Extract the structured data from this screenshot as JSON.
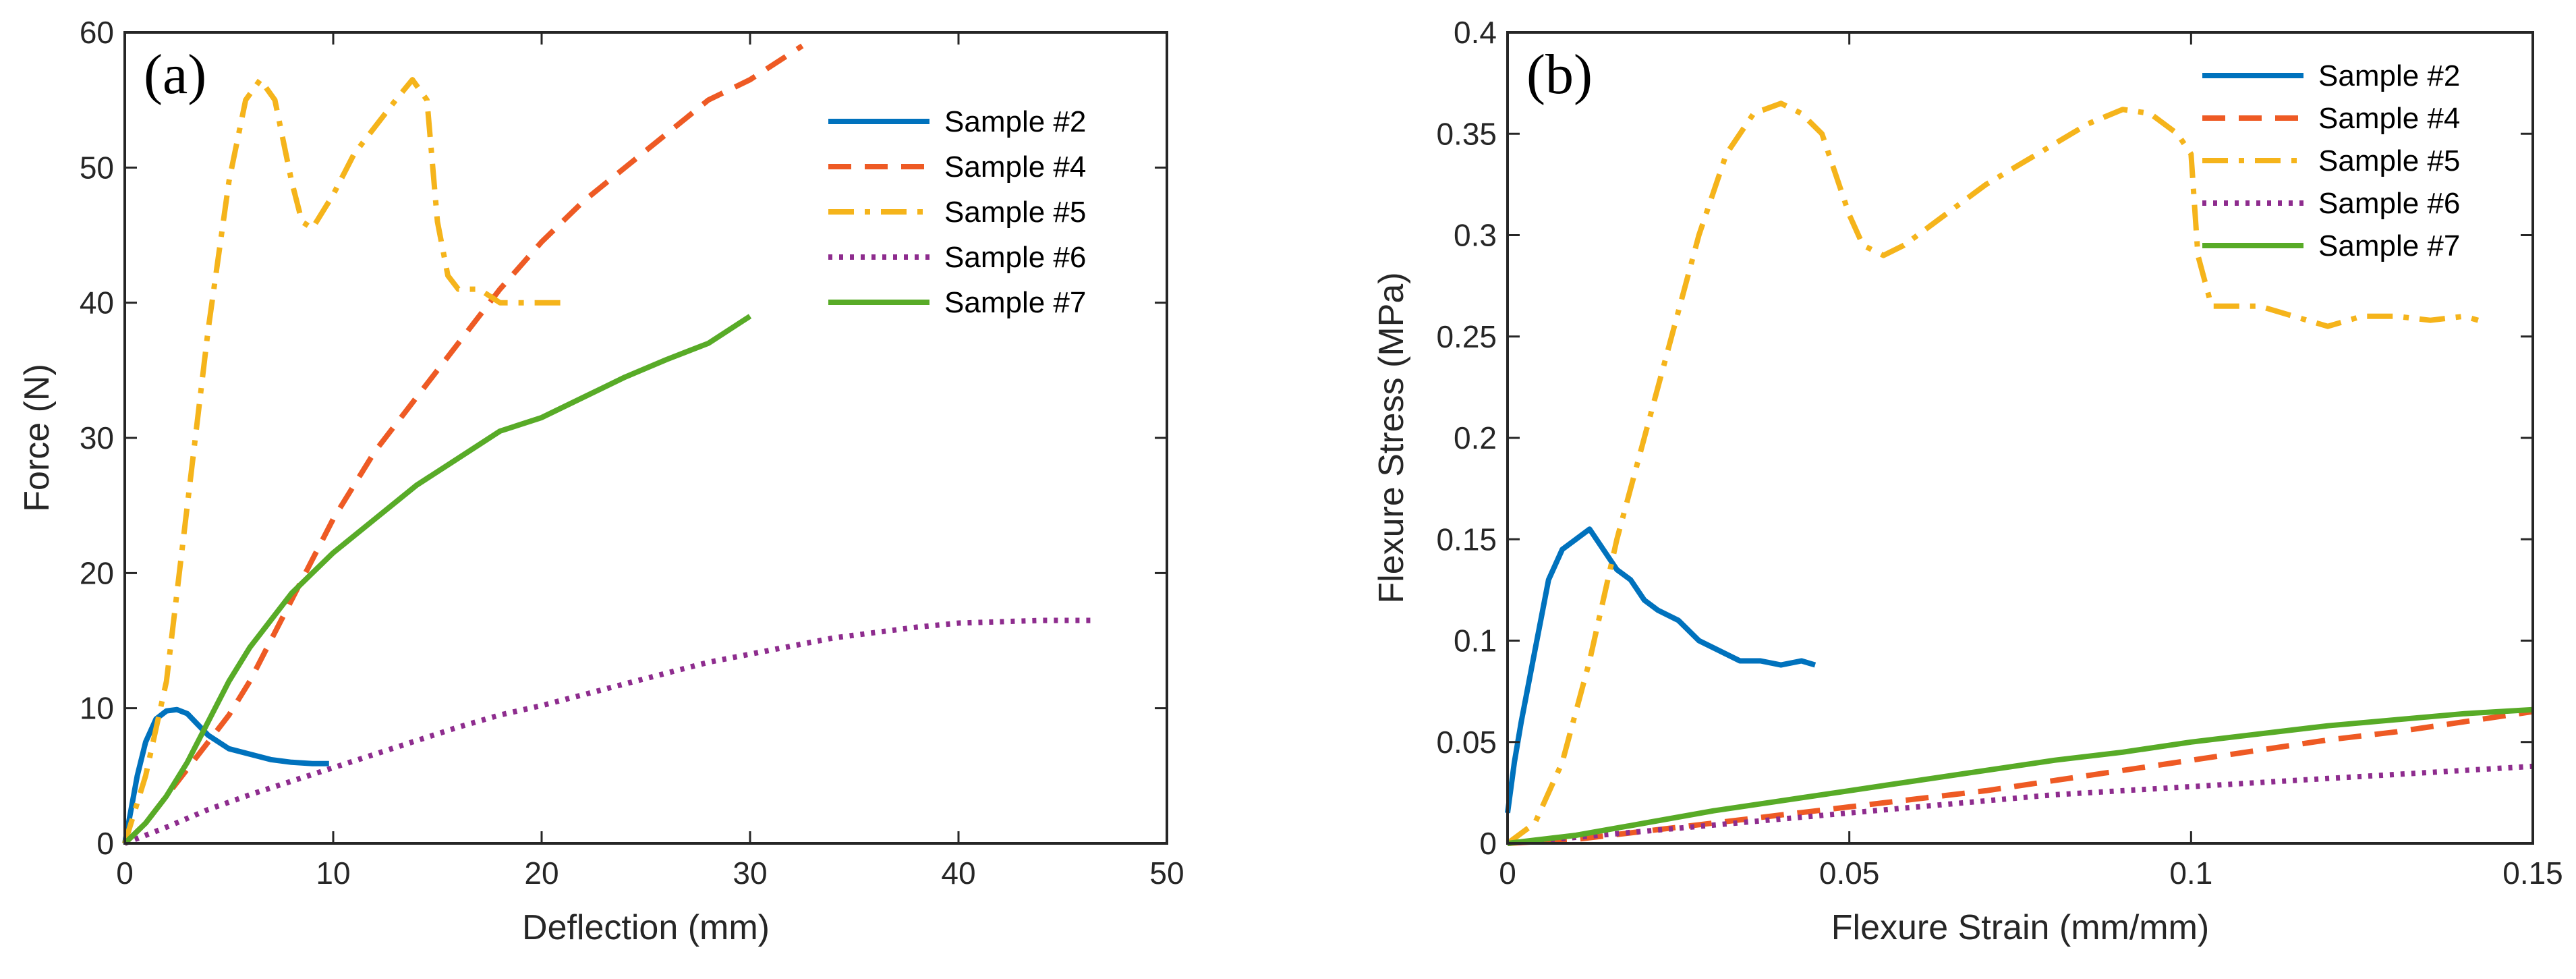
{
  "chart_data": [
    {
      "type": "line",
      "panel_label": "(a)",
      "xlabel": "Deflection (mm)",
      "ylabel": "Force (N)",
      "xlim": [
        0,
        50
      ],
      "ylim": [
        0,
        60
      ],
      "xticks": [
        0,
        10,
        20,
        30,
        40,
        50
      ],
      "yticks": [
        0,
        10,
        20,
        30,
        40,
        50,
        60
      ],
      "grid": false,
      "legend_position": "top-right",
      "series": [
        {
          "name": "Sample #2",
          "color": "#0072BD",
          "dash": "solid",
          "x": [
            0,
            0.3,
            0.6,
            1.0,
            1.5,
            2.0,
            2.5,
            3.0,
            3.5,
            4.0,
            5.0,
            6.0,
            7.0,
            8.0,
            9.0,
            9.8
          ],
          "y": [
            0,
            2.5,
            5.0,
            7.5,
            9.2,
            9.8,
            9.9,
            9.6,
            8.8,
            8.0,
            7.0,
            6.6,
            6.2,
            6.0,
            5.9,
            5.9
          ]
        },
        {
          "name": "Sample #4",
          "color": "#EE5A24",
          "dash": "dashed",
          "x": [
            0,
            1,
            2,
            3,
            4,
            5,
            6,
            7,
            8,
            9,
            10,
            12,
            14,
            16,
            18,
            20,
            22,
            24,
            26,
            28,
            30,
            32.5
          ],
          "y": [
            0,
            1.5,
            3.5,
            5.5,
            7.5,
            9.5,
            12,
            15,
            18,
            21,
            24,
            29,
            33,
            37,
            41,
            44.5,
            47.5,
            50,
            52.5,
            55,
            56.5,
            59
          ]
        },
        {
          "name": "Sample #5",
          "color": "#F5B41B",
          "dash": "dashdot",
          "x": [
            0,
            1,
            2,
            3,
            4,
            5,
            5.8,
            6.5,
            7.2,
            8.0,
            8.5,
            9.0,
            10,
            11,
            12,
            13,
            13.8,
            14.5,
            15.0,
            15.5,
            16,
            17,
            18,
            19,
            20,
            21
          ],
          "y": [
            0,
            5,
            12,
            25,
            38,
            49,
            55,
            56.5,
            55,
            49,
            46,
            45.5,
            48,
            51,
            53,
            55,
            56.5,
            55,
            46,
            42,
            41,
            41,
            40,
            40,
            40,
            40
          ]
        },
        {
          "name": "Sample #6",
          "color": "#8E2C8E",
          "dash": "dotted",
          "x": [
            0,
            2,
            4,
            6,
            8,
            10,
            12,
            14,
            16,
            18,
            20,
            22,
            24,
            26,
            28,
            30,
            32,
            34,
            36,
            38,
            40,
            42,
            44,
            46.5
          ],
          "y": [
            0,
            1.2,
            2.5,
            3.6,
            4.6,
            5.6,
            6.6,
            7.6,
            8.6,
            9.5,
            10.2,
            11.0,
            11.8,
            12.6,
            13.4,
            14.0,
            14.6,
            15.2,
            15.6,
            16.0,
            16.3,
            16.4,
            16.5,
            16.5
          ]
        },
        {
          "name": "Sample #7",
          "color": "#58AB27",
          "dash": "solid",
          "x": [
            0,
            1,
            2,
            3,
            4,
            5,
            6,
            7,
            8,
            9,
            10,
            12,
            14,
            16,
            18,
            20,
            22,
            24,
            26,
            28,
            29.5,
            30
          ],
          "y": [
            0,
            1.5,
            3.5,
            6,
            9,
            12,
            14.5,
            16.5,
            18.5,
            20,
            21.5,
            24,
            26.5,
            28.5,
            30.5,
            31.5,
            33,
            34.5,
            35.8,
            37,
            38.5,
            39
          ]
        }
      ]
    },
    {
      "type": "line",
      "panel_label": "(b)",
      "xlabel": "Flexure Strain (mm/mm)",
      "ylabel": "Flexure Stress (MPa)",
      "xlim": [
        0,
        0.15
      ],
      "ylim": [
        0,
        0.4
      ],
      "xticks": [
        0,
        0.05,
        0.1,
        0.15
      ],
      "yticks": [
        0,
        0.05,
        0.1,
        0.15,
        0.2,
        0.25,
        0.3,
        0.35,
        0.4
      ],
      "grid": false,
      "legend_position": "top-right",
      "series": [
        {
          "name": "Sample #2",
          "color": "#0072BD",
          "dash": "solid",
          "x": [
            0,
            0.001,
            0.002,
            0.004,
            0.006,
            0.008,
            0.01,
            0.012,
            0.014,
            0.016,
            0.018,
            0.02,
            0.022,
            0.025,
            0.028,
            0.031,
            0.034,
            0.037,
            0.04,
            0.043,
            0.045
          ],
          "y": [
            0.015,
            0.04,
            0.06,
            0.095,
            0.13,
            0.145,
            0.15,
            0.155,
            0.145,
            0.135,
            0.13,
            0.12,
            0.115,
            0.11,
            0.1,
            0.095,
            0.09,
            0.09,
            0.088,
            0.09,
            0.088
          ]
        },
        {
          "name": "Sample #4",
          "color": "#EE5A24",
          "dash": "dashed",
          "x": [
            0,
            0.01,
            0.02,
            0.03,
            0.04,
            0.05,
            0.06,
            0.07,
            0.08,
            0.09,
            0.1,
            0.11,
            0.12,
            0.13,
            0.14,
            0.15
          ],
          "y": [
            0,
            0.002,
            0.006,
            0.01,
            0.014,
            0.018,
            0.022,
            0.026,
            0.031,
            0.036,
            0.041,
            0.046,
            0.051,
            0.055,
            0.06,
            0.065
          ]
        },
        {
          "name": "Sample #5",
          "color": "#F5B41B",
          "dash": "dashdot",
          "x": [
            0,
            0.004,
            0.008,
            0.012,
            0.016,
            0.02,
            0.024,
            0.028,
            0.032,
            0.036,
            0.04,
            0.043,
            0.046,
            0.048,
            0.05,
            0.052,
            0.055,
            0.058,
            0.062,
            0.066,
            0.07,
            0.075,
            0.08,
            0.085,
            0.09,
            0.094,
            0.098,
            0.1,
            0.101,
            0.103,
            0.106,
            0.11,
            0.115,
            0.12,
            0.125,
            0.13,
            0.135,
            0.14,
            0.142
          ],
          "y": [
            0,
            0.01,
            0.04,
            0.09,
            0.15,
            0.2,
            0.25,
            0.3,
            0.34,
            0.36,
            0.365,
            0.36,
            0.35,
            0.33,
            0.31,
            0.295,
            0.29,
            0.295,
            0.305,
            0.315,
            0.325,
            0.335,
            0.345,
            0.355,
            0.362,
            0.36,
            0.35,
            0.34,
            0.29,
            0.265,
            0.265,
            0.265,
            0.26,
            0.255,
            0.26,
            0.26,
            0.258,
            0.26,
            0.258
          ]
        },
        {
          "name": "Sample #6",
          "color": "#8E2C8E",
          "dash": "dotted",
          "x": [
            0,
            0.01,
            0.02,
            0.03,
            0.04,
            0.05,
            0.06,
            0.07,
            0.08,
            0.09,
            0.1,
            0.11,
            0.12,
            0.13,
            0.14,
            0.15
          ],
          "y": [
            0,
            0.003,
            0.006,
            0.009,
            0.012,
            0.015,
            0.018,
            0.021,
            0.024,
            0.026,
            0.028,
            0.03,
            0.032,
            0.034,
            0.036,
            0.038
          ]
        },
        {
          "name": "Sample #7",
          "color": "#58AB27",
          "dash": "solid",
          "x": [
            0,
            0.01,
            0.02,
            0.03,
            0.04,
            0.05,
            0.06,
            0.07,
            0.08,
            0.09,
            0.1,
            0.11,
            0.12,
            0.13,
            0.14,
            0.15
          ],
          "y": [
            0,
            0.004,
            0.01,
            0.016,
            0.021,
            0.026,
            0.031,
            0.036,
            0.041,
            0.045,
            0.05,
            0.054,
            0.058,
            0.061,
            0.064,
            0.066
          ]
        }
      ]
    }
  ]
}
